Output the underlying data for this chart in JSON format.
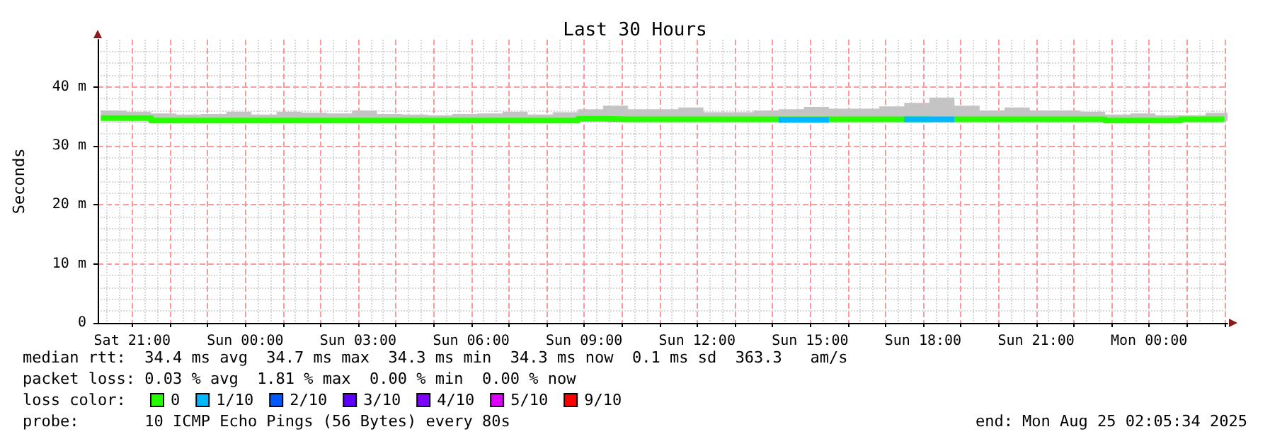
{
  "chart_data": {
    "type": "step",
    "title": "Last 30 Hours",
    "ylabel": "Seconds",
    "legend_title": "loss color:",
    "x": [
      "2025-08-23T20:10",
      "2025-08-23T20:50",
      "2025-08-23T21:30",
      "2025-08-23T22:10",
      "2025-08-23T22:50",
      "2025-08-23T23:30",
      "2025-08-24T00:10",
      "2025-08-24T00:50",
      "2025-08-24T01:30",
      "2025-08-24T02:10",
      "2025-08-24T02:50",
      "2025-08-24T03:30",
      "2025-08-24T04:10",
      "2025-08-24T04:50",
      "2025-08-24T05:30",
      "2025-08-24T06:10",
      "2025-08-24T06:50",
      "2025-08-24T07:30",
      "2025-08-24T08:10",
      "2025-08-24T08:50",
      "2025-08-24T09:30",
      "2025-08-24T10:10",
      "2025-08-24T10:50",
      "2025-08-24T11:30",
      "2025-08-24T12:10",
      "2025-08-24T12:50",
      "2025-08-24T13:30",
      "2025-08-24T14:10",
      "2025-08-24T14:50",
      "2025-08-24T15:30",
      "2025-08-24T16:10",
      "2025-08-24T16:50",
      "2025-08-24T17:30",
      "2025-08-24T18:10",
      "2025-08-24T18:50",
      "2025-08-24T19:30",
      "2025-08-24T20:10",
      "2025-08-24T20:50",
      "2025-08-24T21:30",
      "2025-08-24T22:10",
      "2025-08-24T22:50",
      "2025-08-24T23:30",
      "2025-08-25T00:10",
      "2025-08-25T00:50",
      "2025-08-25T01:30",
      "2025-08-25T02:00"
    ],
    "series": [
      {
        "name": "0",
        "color": "#26ff00",
        "values": [
          34.7,
          34.7,
          34.3,
          34.3,
          34.3,
          34.3,
          34.3,
          34.3,
          34.3,
          34.3,
          34.3,
          34.3,
          34.3,
          34.3,
          34.3,
          34.3,
          34.3,
          34.3,
          34.3,
          34.6,
          34.5,
          34.5,
          34.5,
          34.5,
          34.5,
          34.5,
          34.5,
          34.5,
          34.5,
          34.5,
          34.5,
          34.5,
          34.5,
          null,
          34.5,
          34.5,
          34.5,
          34.5,
          34.5,
          34.5,
          34.3,
          34.3,
          34.3,
          34.5,
          34.5,
          34.5
        ],
        "lower": [
          34.3,
          34.3,
          34.1,
          34.1,
          34.1,
          34.1,
          34.1,
          34.1,
          34.1,
          34.1,
          34.1,
          34.1,
          34.1,
          34.1,
          34.1,
          34.1,
          34.1,
          34.1,
          34.1,
          34.2,
          34.2,
          34.2,
          34.2,
          34.2,
          34.2,
          34.2,
          34.2,
          34.1,
          34.1,
          34.2,
          34.2,
          34.1,
          34.0,
          34.0,
          34.1,
          34.2,
          34.2,
          34.2,
          34.2,
          34.2,
          34.1,
          34.1,
          34.1,
          34.2,
          34.2,
          34.2
        ],
        "upper": [
          36.0,
          35.8,
          35.5,
          35.3,
          35.4,
          35.8,
          35.3,
          35.8,
          35.6,
          35.5,
          36.0,
          35.4,
          35.3,
          35.2,
          35.4,
          35.5,
          35.8,
          35.3,
          35.7,
          36.2,
          36.8,
          36.2,
          36.2,
          36.5,
          35.7,
          35.7,
          36.0,
          36.2,
          36.6,
          36.3,
          36.3,
          36.7,
          37.3,
          38.2,
          36.8,
          36.0,
          36.5,
          36.0,
          36.0,
          35.8,
          35.3,
          35.5,
          35.2,
          35.2,
          35.6,
          35.6
        ]
      },
      {
        "name": "1/10",
        "color": "#00b8ff",
        "type": "line",
        "values": [
          null,
          null,
          null,
          null,
          null,
          null,
          null,
          null,
          null,
          null,
          null,
          null,
          null,
          null,
          null,
          null,
          null,
          null,
          null,
          null,
          null,
          null,
          null,
          null,
          null,
          null,
          null,
          34.4,
          34.4,
          34.4,
          null,
          null,
          34.5,
          34.5,
          34.5,
          null,
          null,
          null,
          null,
          null,
          null,
          null,
          null,
          null,
          null,
          null
        ]
      },
      {
        "name": "2/10",
        "color": "#0059ff",
        "values": [
          null,
          null,
          null,
          null,
          null,
          null,
          null,
          null,
          null,
          null,
          null,
          null,
          null,
          null,
          null,
          null,
          null,
          null,
          null,
          null,
          null,
          null,
          null,
          null,
          null,
          null,
          null,
          null,
          null,
          null,
          null,
          null,
          null,
          null,
          null,
          null,
          null,
          null,
          null,
          null,
          null,
          null,
          null,
          null,
          null,
          null
        ]
      },
      {
        "name": "3/10",
        "color": "#5e00ff",
        "values": [
          null,
          null,
          null,
          null,
          null,
          null,
          null,
          null,
          null,
          null,
          null,
          null,
          null,
          null,
          null,
          null,
          null,
          null,
          null,
          null,
          null,
          null,
          null,
          null,
          null,
          null,
          null,
          null,
          null,
          null,
          null,
          null,
          null,
          null,
          null,
          null,
          null,
          null,
          null,
          null,
          null,
          null,
          null,
          null,
          null,
          null
        ]
      },
      {
        "name": "4/10",
        "color": "#7e00ff",
        "values": [
          null,
          null,
          null,
          null,
          null,
          null,
          null,
          null,
          null,
          null,
          null,
          null,
          null,
          null,
          null,
          null,
          null,
          null,
          null,
          null,
          null,
          null,
          null,
          null,
          null,
          null,
          null,
          null,
          null,
          null,
          null,
          null,
          null,
          null,
          null,
          null,
          null,
          null,
          null,
          null,
          null,
          null,
          null,
          null,
          null,
          null
        ]
      },
      {
        "name": "5/10",
        "color": "#dd00ff",
        "values": [
          null,
          null,
          null,
          null,
          null,
          null,
          null,
          null,
          null,
          null,
          null,
          null,
          null,
          null,
          null,
          null,
          null,
          null,
          null,
          null,
          null,
          null,
          null,
          null,
          null,
          null,
          null,
          null,
          null,
          null,
          null,
          null,
          null,
          null,
          null,
          null,
          null,
          null,
          null,
          null,
          null,
          null,
          null,
          null,
          null,
          null
        ]
      },
      {
        "name": "9/10",
        "color": "#ff0000",
        "values": [
          null,
          null,
          null,
          null,
          null,
          null,
          null,
          null,
          null,
          null,
          null,
          null,
          null,
          null,
          null,
          null,
          null,
          null,
          null,
          null,
          null,
          null,
          null,
          null,
          null,
          null,
          null,
          null,
          null,
          null,
          null,
          null,
          null,
          null,
          null,
          null,
          null,
          null,
          null,
          null,
          null,
          null,
          null,
          null,
          null,
          null
        ]
      }
    ],
    "xlim": [
      "2025-08-23T20:05",
      "2025-08-25T02:05"
    ],
    "xticks": [
      {
        "value": "2025-08-23T21:00",
        "label": "Sat 21:00"
      },
      {
        "value": "2025-08-23T22:00",
        "label": null
      },
      {
        "value": "2025-08-23T23:00",
        "label": null
      },
      {
        "value": "2025-08-24T00:00",
        "label": "Sun 00:00"
      },
      {
        "value": "2025-08-24T01:00",
        "label": null
      },
      {
        "value": "2025-08-24T02:00",
        "label": null
      },
      {
        "value": "2025-08-24T03:00",
        "label": "Sun 03:00"
      },
      {
        "value": "2025-08-24T04:00",
        "label": null
      },
      {
        "value": "2025-08-24T05:00",
        "label": null
      },
      {
        "value": "2025-08-24T06:00",
        "label": "Sun 06:00"
      },
      {
        "value": "2025-08-24T07:00",
        "label": null
      },
      {
        "value": "2025-08-24T08:00",
        "label": null
      },
      {
        "value": "2025-08-24T09:00",
        "label": "Sun 09:00"
      },
      {
        "value": "2025-08-24T10:00",
        "label": null
      },
      {
        "value": "2025-08-24T11:00",
        "label": null
      },
      {
        "value": "2025-08-24T12:00",
        "label": "Sun 12:00"
      },
      {
        "value": "2025-08-24T13:00",
        "label": null
      },
      {
        "value": "2025-08-24T14:00",
        "label": null
      },
      {
        "value": "2025-08-24T15:00",
        "label": "Sun 15:00"
      },
      {
        "value": "2025-08-24T16:00",
        "label": null
      },
      {
        "value": "2025-08-24T17:00",
        "label": null
      },
      {
        "value": "2025-08-24T18:00",
        "label": "Sun 18:00"
      },
      {
        "value": "2025-08-24T19:00",
        "label": null
      },
      {
        "value": "2025-08-24T20:00",
        "label": null
      },
      {
        "value": "2025-08-24T21:00",
        "label": "Sun 21:00"
      },
      {
        "value": "2025-08-24T22:00",
        "label": null
      },
      {
        "value": "2025-08-24T23:00",
        "label": null
      },
      {
        "value": "2025-08-25T00:00",
        "label": "Mon 00:00"
      },
      {
        "value": "2025-08-25T01:00",
        "label": null
      },
      {
        "value": "2025-08-25T02:00",
        "label": null
      }
    ],
    "ylim": [
      0,
      48
    ],
    "yticks": [
      0,
      {
        "value": 10,
        "label": "10 m"
      },
      {
        "value": 20,
        "label": "20 m"
      },
      {
        "value": 30,
        "label": "30 m"
      },
      {
        "value": 40,
        "label": "40 m"
      }
    ],
    "grid": true,
    "legend": "bottom left",
    "marker": "none",
    "line_style": "solid",
    "annotations": [
      "median rtt:  34.4 ms avg  34.7 ms max  34.3 ms min  34.3 ms now  0.1 ms sd  363.3   am/s",
      "packet loss: 0.03 % avg  1.81 % max  0.00 % min  0.00 % now",
      "probe:       10 ICMP Echo Pings (56 Bytes) every 80s",
      "end: Mon Aug 25 02:05:34 2025"
    ]
  }
}
